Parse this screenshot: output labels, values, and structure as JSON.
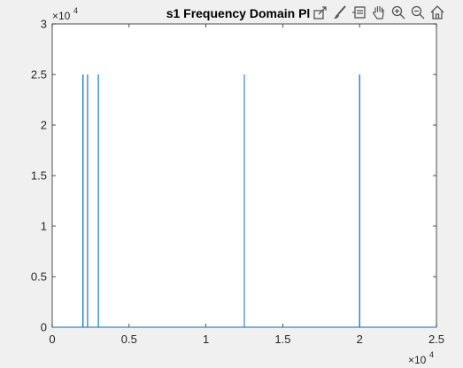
{
  "window": {
    "title": "s1 Frequency Domain Pl"
  },
  "toolbar": {
    "buttons": [
      {
        "icon": "export-icon"
      },
      {
        "icon": "brush-icon"
      },
      {
        "icon": "data-tips-icon"
      },
      {
        "icon": "pan-icon"
      },
      {
        "icon": "zoom-in-icon"
      },
      {
        "icon": "zoom-out-icon"
      },
      {
        "icon": "home-icon"
      }
    ]
  },
  "chart_data": {
    "type": "line",
    "title": "s1 Frequency Domain Pl",
    "xlabel": "",
    "ylabel": "",
    "xlim": [
      0,
      25000
    ],
    "ylim": [
      0,
      30000
    ],
    "x_multiplier": {
      "base": "×10",
      "exp": "4"
    },
    "y_multiplier": {
      "base": "×10",
      "exp": "4"
    },
    "x_ticks": [
      0,
      5000,
      10000,
      15000,
      20000,
      25000
    ],
    "x_tick_labels": [
      "0",
      "0.5",
      "1",
      "1.5",
      "2",
      "2.5"
    ],
    "y_ticks": [
      0,
      5000,
      10000,
      15000,
      20000,
      25000,
      30000
    ],
    "y_tick_labels": [
      "0",
      "0.5",
      "1",
      "1.5",
      "2",
      "2.5",
      "3"
    ],
    "grid": false,
    "color": "#0072bd",
    "series": [
      {
        "spikes": [
          {
            "x": 2000,
            "y": 25000
          },
          {
            "x": 2300,
            "y": 25000
          },
          {
            "x": 3000,
            "y": 25000
          },
          {
            "x": 12500,
            "y": 25000
          },
          {
            "x": 20000,
            "y": 25000
          }
        ]
      }
    ]
  }
}
